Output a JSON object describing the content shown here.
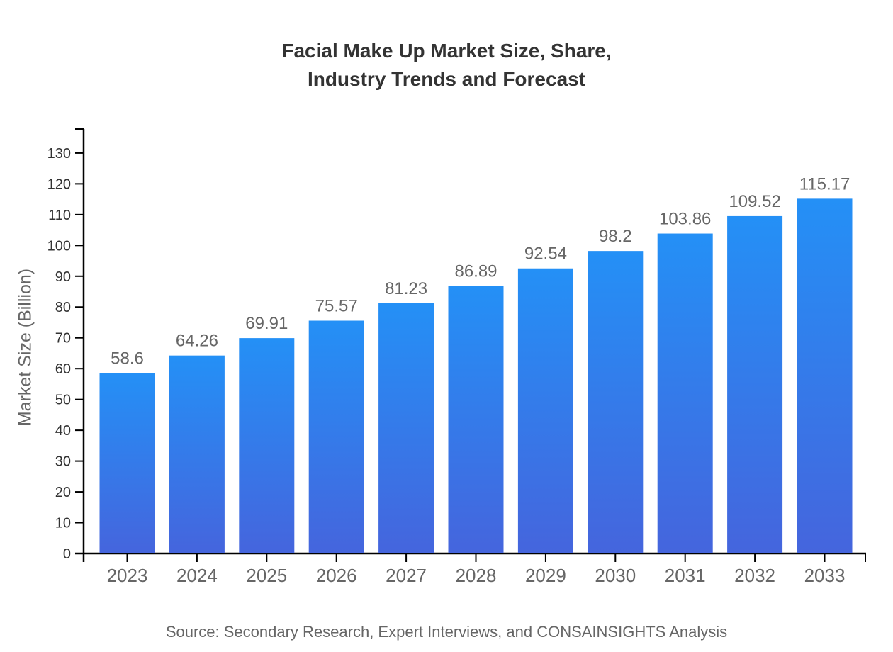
{
  "title": {
    "line1": "Facial Make Up Market Size, Share,",
    "line2": "Industry Trends and Forecast"
  },
  "source_note": "Source: Secondary Research, Expert Interviews, and CONSAINSIGHTS Analysis",
  "chart_data": {
    "type": "bar",
    "title": "Facial Make Up Market Size, Share, Industry Trends and Forecast",
    "categories": [
      "2023",
      "2024",
      "2025",
      "2026",
      "2027",
      "2028",
      "2029",
      "2030",
      "2031",
      "2032",
      "2033"
    ],
    "values": [
      58.6,
      64.26,
      69.91,
      75.57,
      81.23,
      86.89,
      92.54,
      98.2,
      103.86,
      109.52,
      115.17
    ],
    "value_labels": [
      "58.6",
      "64.26",
      "69.91",
      "75.57",
      "81.23",
      "86.89",
      "92.54",
      "98.2",
      "103.86",
      "109.52",
      "115.17"
    ],
    "xlabel": "",
    "ylabel": "Market Size (Billion)",
    "ylim": [
      0,
      137.8
    ],
    "yticks": [
      0,
      10,
      20,
      30,
      40,
      50,
      60,
      70,
      80,
      90,
      100,
      110,
      120,
      130
    ],
    "grid": false,
    "legend": false,
    "colors": {
      "bar_gradient_top": "#2490F6",
      "bar_gradient_bottom": "#4565DD",
      "axis": "#000000",
      "y_tick_label": "#333333",
      "category_label": "#666666",
      "value_label": "#666666",
      "axis_title": "#666666",
      "title_text": "#333333",
      "source_text": "#666666"
    }
  }
}
